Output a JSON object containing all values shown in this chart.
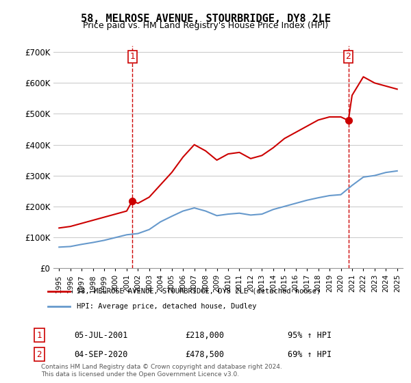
{
  "title": "58, MELROSE AVENUE, STOURBRIDGE, DY8 2LE",
  "subtitle": "Price paid vs. HM Land Registry's House Price Index (HPI)",
  "xlabel": "",
  "ylabel": "",
  "ylim": [
    0,
    720000
  ],
  "yticks": [
    0,
    100000,
    200000,
    300000,
    400000,
    500000,
    600000,
    700000
  ],
  "ytick_labels": [
    "£0",
    "£100K",
    "£200K",
    "£300K",
    "£400K",
    "£500K",
    "£600K",
    "£700K"
  ],
  "sale1": {
    "date_num": 2001.5,
    "price": 218000,
    "label": "1"
  },
  "sale2": {
    "date_num": 2020.67,
    "price": 478500,
    "label": "2"
  },
  "legend_line1": "58, MELROSE AVENUE, STOURBRIDGE, DY8 2LE (detached house)",
  "legend_line2": "HPI: Average price, detached house, Dudley",
  "table_row1": [
    "1",
    "05-JUL-2001",
    "£218,000",
    "95% ↑ HPI"
  ],
  "table_row2": [
    "2",
    "04-SEP-2020",
    "£478,500",
    "69% ↑ HPI"
  ],
  "footer": "Contains HM Land Registry data © Crown copyright and database right 2024.\nThis data is licensed under the Open Government Licence v3.0.",
  "red_color": "#cc0000",
  "blue_color": "#6699cc",
  "background_color": "#ffffff",
  "grid_color": "#cccccc",
  "hpi_red": {
    "years": [
      1995,
      1996,
      1997,
      1998,
      1999,
      2000,
      2001,
      2001.5,
      2002,
      2003,
      2004,
      2005,
      2006,
      2007,
      2008,
      2009,
      2010,
      2011,
      2012,
      2013,
      2014,
      2015,
      2016,
      2017,
      2018,
      2019,
      2020,
      2020.67,
      2021,
      2022,
      2023,
      2024,
      2025
    ],
    "values": [
      130000,
      135000,
      145000,
      155000,
      165000,
      175000,
      185000,
      218000,
      210000,
      230000,
      270000,
      310000,
      360000,
      400000,
      380000,
      350000,
      370000,
      375000,
      355000,
      365000,
      390000,
      420000,
      440000,
      460000,
      480000,
      490000,
      490000,
      478500,
      560000,
      620000,
      600000,
      590000,
      580000
    ]
  },
  "hpi_blue": {
    "years": [
      1995,
      1996,
      1997,
      1998,
      1999,
      2000,
      2001,
      2002,
      2003,
      2004,
      2005,
      2006,
      2007,
      2008,
      2009,
      2010,
      2011,
      2012,
      2013,
      2014,
      2015,
      2016,
      2017,
      2018,
      2019,
      2020,
      2021,
      2022,
      2023,
      2024,
      2025
    ],
    "values": [
      68000,
      70000,
      77000,
      83000,
      90000,
      99000,
      108000,
      112000,
      125000,
      150000,
      168000,
      185000,
      195000,
      185000,
      170000,
      175000,
      178000,
      172000,
      175000,
      190000,
      200000,
      210000,
      220000,
      228000,
      235000,
      238000,
      268000,
      295000,
      300000,
      310000,
      315000
    ]
  }
}
